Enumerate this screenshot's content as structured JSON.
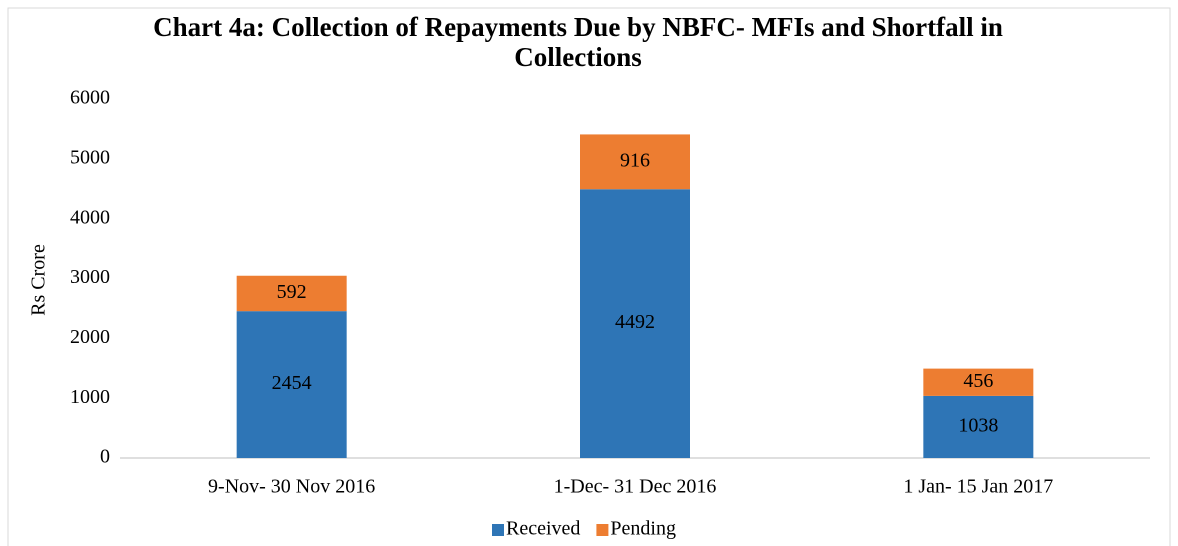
{
  "chart_data": {
    "type": "stacked_bar",
    "title": "Chart 4a: Collection of Repayments Due by NBFC- MFIs and Shortfall in Collections",
    "y_label": "Rs Crore",
    "categories": [
      "9-Nov- 30 Nov 2016",
      "1-Dec- 31 Dec 2016",
      "1 Jan- 15 Jan 2017"
    ],
    "series": [
      {
        "name": "Received",
        "color": "#2e75b6",
        "values": [
          2454,
          4492,
          1038
        ]
      },
      {
        "name": "Pending",
        "color": "#ed7d31",
        "values": [
          592,
          916,
          456
        ]
      }
    ],
    "ylim": [
      0,
      6000
    ],
    "yticks": [
      0,
      1000,
      2000,
      3000,
      4000,
      5000,
      6000
    ],
    "grid": false,
    "legend": "bottom"
  }
}
